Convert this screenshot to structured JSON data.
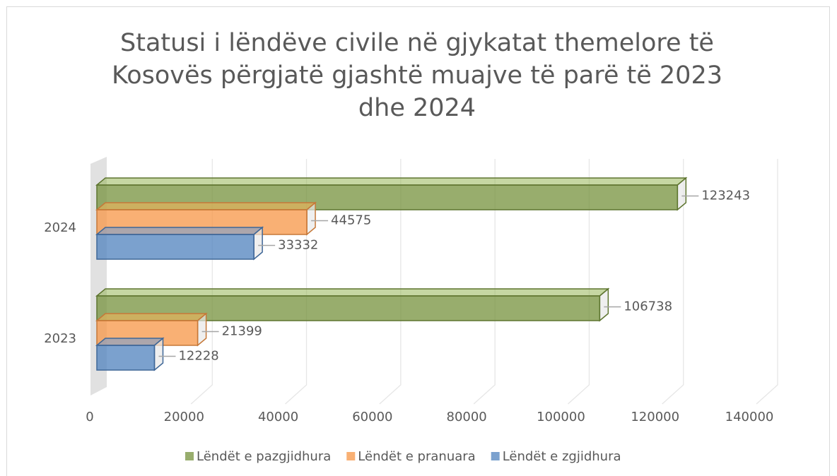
{
  "chart_data": {
    "type": "bar",
    "orientation": "horizontal",
    "3d": true,
    "title": "Statusi i lëndëve civile në gjykatat themelore të Kosovës përgjatë gjashtë muajve të parë të 2023 dhe 2024",
    "categories": [
      "2023",
      "2024"
    ],
    "series": [
      {
        "name": "Lëndët e pazgjidhura",
        "color": "#76923c",
        "values": [
          106738,
          123243
        ]
      },
      {
        "name": "Lëndët e pranuara",
        "color": "#f79646",
        "values": [
          21399,
          44575
        ]
      },
      {
        "name": "Lëndët e zgjidhura",
        "color": "#4f81bd",
        "values": [
          12228,
          33332
        ]
      }
    ],
    "xlim": [
      0,
      140000
    ],
    "xticks": [
      0,
      20000,
      40000,
      60000,
      80000,
      100000,
      120000,
      140000
    ],
    "grid": true,
    "legend": "bottom"
  }
}
